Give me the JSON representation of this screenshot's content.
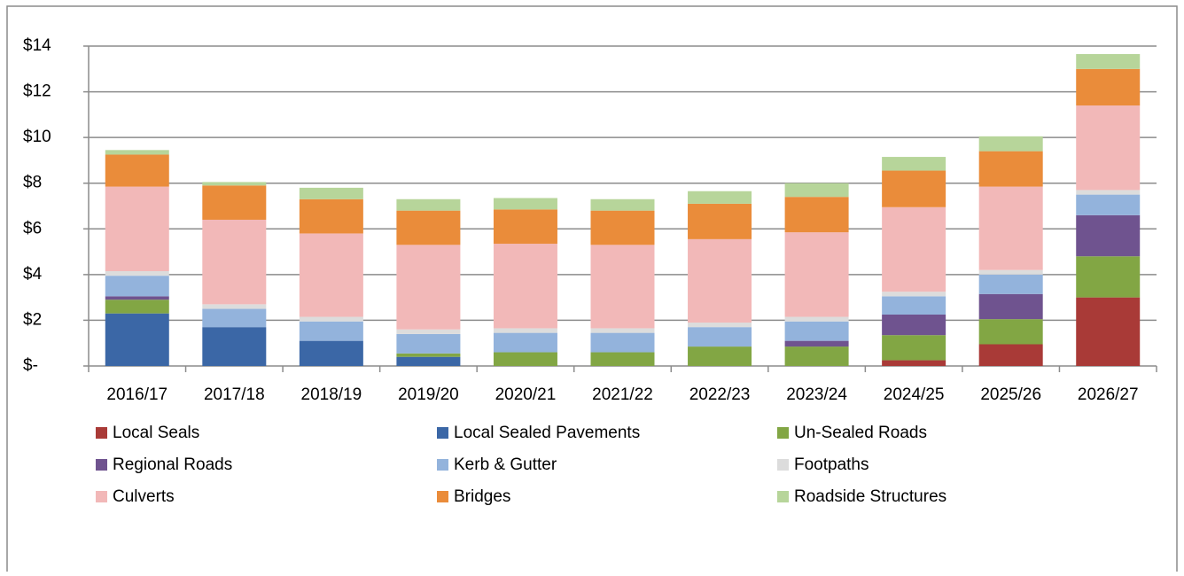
{
  "chart_data": {
    "type": "stacked_bar",
    "categories": [
      "2016/17",
      "2017/18",
      "2018/19",
      "2019/20",
      "2020/21",
      "2021/22",
      "2022/23",
      "2023/24",
      "2024/25",
      "2025/26",
      "2026/27"
    ],
    "series": [
      {
        "name": "Local Seals",
        "color": "#a93a37",
        "values": [
          0,
          0,
          0,
          0,
          0,
          0,
          0,
          0,
          0.25,
          0.95,
          3.0
        ]
      },
      {
        "name": "Local Sealed Pavements",
        "color": "#3b67a6",
        "values": [
          2.3,
          1.7,
          1.1,
          0.4,
          0,
          0,
          0,
          0,
          0,
          0,
          0
        ]
      },
      {
        "name": "Un-Sealed Roads",
        "color": "#82a644",
        "values": [
          0.6,
          0,
          0,
          0.15,
          0.6,
          0.6,
          0.85,
          0.85,
          1.1,
          1.1,
          1.8
        ]
      },
      {
        "name": "Regional Roads",
        "color": "#6f538f",
        "values": [
          0.15,
          0,
          0,
          0,
          0,
          0,
          0,
          0.25,
          0.9,
          1.1,
          1.8
        ]
      },
      {
        "name": "Kerb & Gutter",
        "color": "#93b3dc",
        "values": [
          0.9,
          0.8,
          0.85,
          0.85,
          0.85,
          0.85,
          0.85,
          0.85,
          0.8,
          0.85,
          0.9
        ]
      },
      {
        "name": "Footpaths",
        "color": "#dcdcdc",
        "values": [
          0.2,
          0.2,
          0.2,
          0.2,
          0.2,
          0.2,
          0.2,
          0.2,
          0.2,
          0.2,
          0.2
        ]
      },
      {
        "name": "Culverts",
        "color": "#f2b8b8",
        "values": [
          3.7,
          3.7,
          3.65,
          3.7,
          3.7,
          3.65,
          3.65,
          3.7,
          3.7,
          3.65,
          3.7
        ]
      },
      {
        "name": "Bridges",
        "color": "#ea8c3a",
        "values": [
          1.4,
          1.5,
          1.5,
          1.5,
          1.5,
          1.5,
          1.55,
          1.55,
          1.6,
          1.55,
          1.6
        ]
      },
      {
        "name": "Roadside Structures",
        "color": "#b7d59a",
        "values": [
          0.2,
          0.15,
          0.5,
          0.5,
          0.5,
          0.5,
          0.55,
          0.6,
          0.6,
          0.65,
          0.65
        ]
      }
    ],
    "ylim": [
      0,
      14
    ],
    "yticks": [
      {
        "value": 0,
        "label": "$-"
      },
      {
        "value": 2,
        "label": "$2"
      },
      {
        "value": 4,
        "label": "$4"
      },
      {
        "value": 6,
        "label": "$6"
      },
      {
        "value": 8,
        "label": "$8"
      },
      {
        "value": 10,
        "label": "$10"
      },
      {
        "value": 12,
        "label": "$12"
      },
      {
        "value": 14,
        "label": "$14"
      }
    ],
    "grid": true,
    "legend": "bottom"
  }
}
